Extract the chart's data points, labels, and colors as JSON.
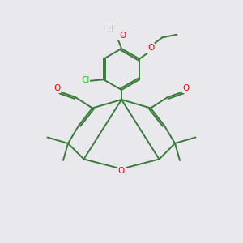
{
  "background_color": "#e9e9ed",
  "bond_color": "#3a7a3a",
  "atom_colors": {
    "O": "#ff0000",
    "Cl": "#00cc00",
    "H": "#607878",
    "C": "#3a7a3a"
  },
  "figsize": [
    3.0,
    3.0
  ],
  "dpi": 100
}
